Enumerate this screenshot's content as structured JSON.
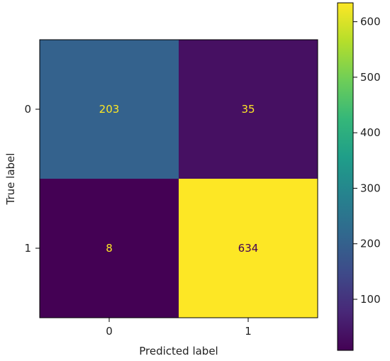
{
  "chart_data": {
    "type": "heatmap",
    "title": "",
    "xlabel": "Predicted label",
    "ylabel": "True label",
    "x_categories": [
      "0",
      "1"
    ],
    "y_categories": [
      "0",
      "1"
    ],
    "values": [
      [
        203,
        35
      ],
      [
        8,
        634
      ]
    ],
    "colorbar": {
      "colormap": "viridis",
      "range": [
        8,
        634
      ],
      "ticks": [
        100,
        200,
        300,
        400,
        500,
        600
      ]
    },
    "text_color_light": "#fde725",
    "text_color_dark": "#440154",
    "grid": false
  }
}
